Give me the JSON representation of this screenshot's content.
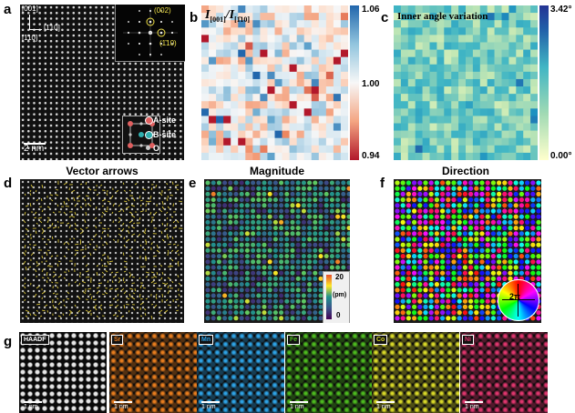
{
  "panels": {
    "a": {
      "label": "a",
      "axis_top": "[001]",
      "axis_right": "[1̄10]",
      "axis_left": "[110]",
      "fft_spot_1": "(002)",
      "fft_spot_2": "(1̄10)",
      "legend": {
        "a_site": "A-site",
        "b_site": "B-site",
        "o_site": "O"
      },
      "scale": "2 nm",
      "colors": {
        "a_site": "#e06060",
        "b_site": "#30b0b0",
        "o_site": "#cccccc",
        "fft_marks": "#f2e34a"
      }
    },
    "b": {
      "label": "b",
      "title": "I[001]/I[1̄10]",
      "title_main": "I",
      "title_sub1": "[001]",
      "title_sep": "/I",
      "title_sub2": "[1̄10]",
      "cbar_max": "1.06",
      "cbar_mid": "1.00",
      "cbar_min": "0.94",
      "colors": {
        "low": "#b2182b",
        "mid": "#f7f7f7",
        "high": "#2166ac"
      }
    },
    "c": {
      "label": "c",
      "title": "Inner angle variation",
      "cbar_max": "3.42°",
      "cbar_min": "0.00°",
      "colors": {
        "low": "#ffffcc",
        "mid": "#41b6c4",
        "high": "#253494"
      }
    },
    "d": {
      "label": "d",
      "title": "Vector arrows",
      "colors": {
        "arrows": "#e8d23a"
      }
    },
    "e": {
      "label": "e",
      "title": "Magnitude",
      "cbar_max": "20",
      "cbar_unit": "(pm)",
      "cbar_min": "0"
    },
    "f": {
      "label": "f",
      "title": "Direction",
      "wheel_label": "2π"
    },
    "g": {
      "label": "g",
      "tiles": [
        {
          "label": "HAADF",
          "scale": "1 nm",
          "color": "#e6e6e6",
          "label_color": "#ffffff"
        },
        {
          "label": "Sr",
          "scale": "1 nm",
          "color": "#e87d1e",
          "label_color": "#e87d1e"
        },
        {
          "label": "Mn",
          "scale": "1 nm",
          "color": "#2ea3e6",
          "label_color": "#2ea3e6"
        },
        {
          "label": "Fe",
          "scale": "1 nm",
          "color": "#4dbb1f",
          "label_color": "#4dbb1f"
        },
        {
          "label": "Co",
          "scale": "1 nm",
          "color": "#d9d929",
          "label_color": "#d9d929"
        },
        {
          "label": "Ni",
          "scale": "1 nm",
          "color": "#e0366e",
          "label_color": "#e0366e"
        }
      ]
    }
  }
}
